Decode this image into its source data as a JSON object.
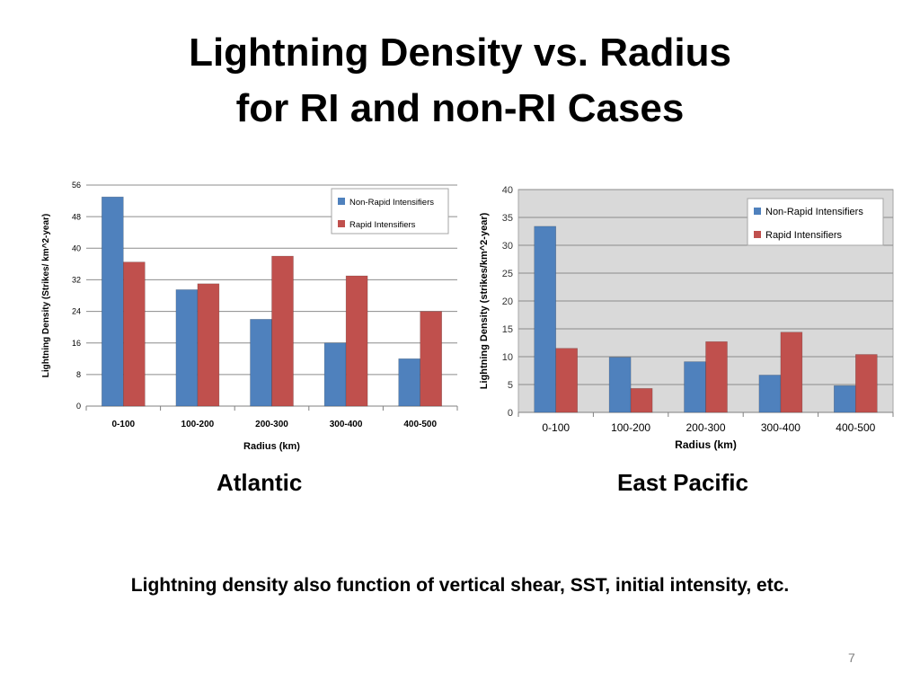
{
  "slide": {
    "title_line1": "Lightning Density vs. Radius",
    "title_line2": "for RI and non-RI Cases",
    "caption_left": "Atlantic",
    "caption_right": "East Pacific",
    "footnote": "Lightning density also function of vertical shear, SST, initial intensity, etc.",
    "page_number": "7"
  },
  "colors": {
    "non_ri": "#4F81BD",
    "ri": "#C0504D",
    "plot_bg_right": "#D9D9D9",
    "gridline": "#8C8C8C"
  },
  "chart_data": [
    {
      "type": "bar",
      "id": "atlantic",
      "categories": [
        "0-100",
        "100-200",
        "200-300",
        "300-400",
        "400-500"
      ],
      "series": [
        {
          "name": "Non-Rapid Intensifiers",
          "values": [
            53,
            29.5,
            22,
            16,
            12
          ]
        },
        {
          "name": "Rapid Intensifiers",
          "values": [
            36.5,
            31,
            38,
            33,
            24
          ]
        }
      ],
      "xlabel": "Radius (km)",
      "ylabel": "Lightning Density (Strikes/ km^2-year)",
      "ylim": [
        0,
        56
      ],
      "yticks": [
        0,
        8,
        16,
        24,
        32,
        40,
        48,
        56
      ],
      "grid": true,
      "legend": "top-right"
    },
    {
      "type": "bar",
      "id": "east-pacific",
      "categories": [
        "0-100",
        "100-200",
        "200-300",
        "300-400",
        "400-500"
      ],
      "series": [
        {
          "name": "Non-Rapid Intensifiers",
          "values": [
            33.4,
            9.9,
            9.1,
            6.7,
            4.8
          ]
        },
        {
          "name": "Rapid Intensifiers",
          "values": [
            11.5,
            4.3,
            12.7,
            14.4,
            10.4
          ]
        }
      ],
      "xlabel": "Radius (km)",
      "ylabel": "Lightning Density (strikes/km^2-year)",
      "ylim": [
        0,
        40
      ],
      "yticks": [
        0,
        5,
        10,
        15,
        20,
        25,
        30,
        35,
        40
      ],
      "grid": true,
      "legend": "top-right"
    }
  ]
}
